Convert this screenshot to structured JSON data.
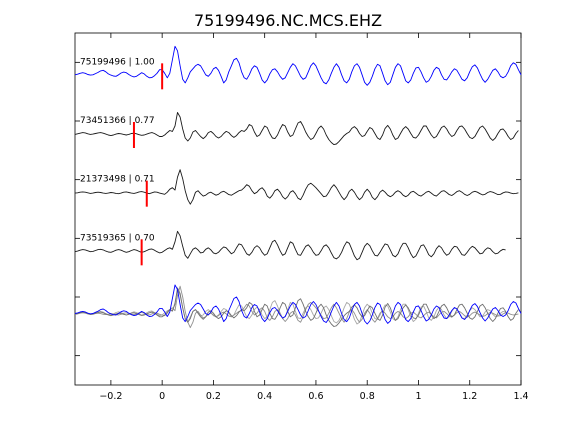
{
  "chart_data": {
    "type": "line",
    "title": "75199496.NC.MCS.EHZ",
    "xlabel": "",
    "ylabel": "",
    "xlim": [
      -0.34,
      1.4
    ],
    "xticks": [
      -0.2,
      0,
      0.2,
      0.4,
      0.6,
      0.8,
      1,
      1.2,
      1.4
    ],
    "xtick_labels": [
      "−0.2",
      "0",
      "0.2",
      "0.4",
      "0.6",
      "0.8",
      "1",
      "1.2",
      "1.4"
    ],
    "yticks_count": 6,
    "grid": false,
    "sample_step": 0.01,
    "series": [
      {
        "name": "75199496 | 1.00",
        "color": "#0000ff",
        "pick_time": 0.0,
        "pick_color": "#ff0000",
        "values": [
          0.05,
          0.07,
          0.1,
          0.12,
          0.1,
          0.06,
          0.04,
          0.05,
          0.09,
          0.13,
          0.18,
          0.2,
          0.15,
          0.08,
          0.04,
          0.01,
          0.0,
          0.05,
          0.11,
          0.14,
          0.12,
          0.06,
          0.01,
          -0.02,
          0.0,
          0.06,
          0.12,
          0.08,
          0.0,
          -0.05,
          -0.04,
          0.02,
          0.1,
          0.22,
          0.22,
          0.1,
          -0.05,
          0.1,
          0.55,
          1.0,
          0.85,
          0.35,
          -0.1,
          -0.22,
          -0.05,
          0.15,
          0.25,
          0.35,
          0.4,
          0.35,
          0.2,
          0.05,
          0.0,
          0.1,
          0.25,
          0.3,
          0.2,
          0.0,
          -0.22,
          -0.12,
          0.15,
          0.35,
          0.55,
          0.6,
          0.45,
          0.15,
          -0.05,
          -0.1,
          0.05,
          0.25,
          0.35,
          0.3,
          0.1,
          -0.12,
          -0.22,
          -0.12,
          0.08,
          0.22,
          0.25,
          0.15,
          0.0,
          -0.1,
          -0.05,
          0.12,
          0.3,
          0.42,
          0.35,
          0.18,
          0.0,
          -0.1,
          -0.05,
          0.15,
          0.35,
          0.45,
          0.35,
          0.15,
          -0.05,
          -0.2,
          -0.25,
          -0.12,
          0.1,
          0.3,
          0.42,
          0.3,
          0.05,
          -0.15,
          -0.22,
          -0.1,
          0.15,
          0.35,
          0.42,
          0.3,
          0.05,
          -0.2,
          -0.3,
          -0.2,
          0.0,
          0.25,
          0.4,
          0.35,
          0.1,
          -0.15,
          -0.28,
          -0.2,
          0.05,
          0.3,
          0.42,
          0.35,
          0.1,
          -0.15,
          -0.22,
          -0.12,
          0.1,
          0.28,
          0.3,
          0.15,
          -0.05,
          -0.2,
          -0.15,
          0.0,
          0.2,
          0.3,
          0.25,
          0.05,
          -0.1,
          -0.12,
          0.0,
          0.15,
          0.25,
          0.2,
          0.05,
          -0.1,
          -0.15,
          -0.05,
          0.15,
          0.32,
          0.38,
          0.28,
          0.08,
          -0.1,
          -0.2,
          -0.1,
          0.05,
          0.2,
          0.25,
          0.15,
          0.0,
          -0.05,
          0.0,
          0.15,
          0.35,
          0.45,
          0.4,
          0.22,
          0.05
        ]
      },
      {
        "name": "73451366 | 0.77",
        "color": "#1a1a1a",
        "pick_time": -0.11,
        "pick_color": "#ff0000",
        "values": [
          0.02,
          0.04,
          0.06,
          0.08,
          0.07,
          0.04,
          0.02,
          0.03,
          0.05,
          0.07,
          0.08,
          0.06,
          0.03,
          0.0,
          -0.02,
          0.0,
          0.03,
          0.05,
          0.04,
          0.02,
          0.0,
          0.02,
          0.05,
          0.06,
          0.04,
          0.01,
          -0.01,
          0.0,
          0.03,
          0.06,
          0.08,
          0.05,
          0.0,
          -0.05,
          -0.05,
          0.0,
          0.08,
          0.15,
          0.12,
          0.3,
          0.75,
          0.6,
          0.2,
          -0.1,
          -0.2,
          -0.1,
          0.1,
          0.15,
          0.05,
          -0.05,
          -0.12,
          -0.05,
          0.08,
          0.12,
          0.05,
          -0.05,
          -0.1,
          -0.05,
          0.05,
          0.12,
          0.08,
          -0.02,
          -0.08,
          -0.02,
          0.08,
          0.15,
          0.12,
          0.2,
          0.35,
          0.3,
          0.1,
          -0.05,
          0.0,
          0.15,
          0.3,
          0.25,
          0.05,
          -0.1,
          -0.12,
          0.0,
          0.2,
          0.35,
          0.3,
          0.1,
          -0.05,
          0.0,
          0.2,
          0.4,
          0.45,
          0.3,
          0.1,
          -0.05,
          -0.15,
          -0.1,
          0.05,
          0.22,
          0.3,
          0.2,
          0.0,
          -0.15,
          -0.25,
          -0.32,
          -0.3,
          -0.22,
          -0.12,
          -0.02,
          0.05,
          0.1,
          0.22,
          0.28,
          0.2,
          0.05,
          -0.05,
          -0.02,
          0.12,
          0.25,
          0.2,
          0.05,
          -0.1,
          -0.15,
          0.0,
          0.22,
          0.32,
          0.2,
          0.0,
          -0.15,
          -0.1,
          0.05,
          0.2,
          0.28,
          0.2,
          0.05,
          -0.08,
          -0.1,
          0.0,
          0.15,
          0.3,
          0.3,
          0.15,
          0.0,
          -0.1,
          -0.05,
          0.1,
          0.25,
          0.3,
          0.2,
          0.05,
          -0.05,
          0.0,
          0.15,
          0.28,
          0.3,
          0.2,
          0.05,
          -0.08,
          -0.12,
          -0.05,
          0.1,
          0.25,
          0.3,
          0.2,
          0.05,
          -0.1,
          -0.18,
          -0.1,
          0.05,
          0.18,
          0.2,
          0.1,
          -0.05,
          -0.15,
          -0.1,
          0.05,
          0.15
        ]
      },
      {
        "name": "21373498 | 0.71",
        "color": "#1a1a1a",
        "pick_time": -0.06,
        "pick_color": "#ff0000",
        "values": [
          0.02,
          0.03,
          0.05,
          0.06,
          0.05,
          0.03,
          0.01,
          0.02,
          0.04,
          0.05,
          0.04,
          0.02,
          0.01,
          0.02,
          0.04,
          0.03,
          0.01,
          0.0,
          0.02,
          0.05,
          0.06,
          0.04,
          0.02,
          0.01,
          0.03,
          0.06,
          0.07,
          0.05,
          0.02,
          0.0,
          0.03,
          0.06,
          0.05,
          0.02,
          0.0,
          -0.02,
          0.05,
          0.15,
          0.2,
          0.12,
          0.55,
          0.8,
          0.5,
          0.1,
          -0.2,
          -0.35,
          -0.2,
          0.05,
          0.1,
          0.0,
          -0.08,
          -0.05,
          0.02,
          0.05,
          0.0,
          -0.05,
          -0.02,
          0.05,
          0.08,
          0.03,
          -0.03,
          -0.05,
          0.0,
          0.05,
          0.1,
          0.12,
          0.2,
          0.3,
          0.25,
          0.1,
          0.0,
          0.05,
          0.15,
          0.2,
          0.1,
          -0.08,
          -0.15,
          -0.05,
          0.1,
          0.15,
          0.05,
          -0.1,
          -0.18,
          -0.1,
          0.05,
          0.1,
          0.0,
          -0.15,
          -0.2,
          -0.05,
          0.15,
          0.3,
          0.35,
          0.28,
          0.2,
          0.1,
          0.0,
          -0.1,
          -0.08,
          0.05,
          0.2,
          0.3,
          0.2,
          0.05,
          -0.1,
          -0.2,
          -0.1,
          0.08,
          0.15,
          0.05,
          -0.1,
          -0.2,
          -0.12,
          0.05,
          0.15,
          0.05,
          -0.12,
          -0.2,
          -0.1,
          0.05,
          0.12,
          0.05,
          -0.05,
          -0.1,
          -0.05,
          0.05,
          0.1,
          0.05,
          -0.05,
          -0.1,
          -0.05,
          0.05,
          0.08,
          0.02,
          -0.05,
          -0.08,
          -0.02,
          0.05,
          0.08,
          0.02,
          -0.05,
          -0.08,
          0.0,
          0.08,
          0.1,
          0.04,
          -0.03,
          -0.06,
          0.0,
          0.07,
          0.1,
          0.05,
          -0.02,
          -0.06,
          -0.02,
          0.05,
          0.08,
          0.05,
          0.0,
          -0.04,
          -0.02,
          0.04,
          0.07,
          0.05,
          0.01,
          -0.03,
          -0.02,
          0.03,
          0.06,
          0.05,
          0.02,
          0.0,
          0.01,
          0.03
        ]
      },
      {
        "name": "73519365 | 0.70",
        "color": "#1a1a1a",
        "pick_time": -0.08,
        "pick_color": "#ff0000",
        "values": [
          0.02,
          0.04,
          0.07,
          0.09,
          0.08,
          0.05,
          0.02,
          0.03,
          0.06,
          0.09,
          0.1,
          0.08,
          0.04,
          0.01,
          0.0,
          0.03,
          0.07,
          0.09,
          0.07,
          0.03,
          0.0,
          0.02,
          0.06,
          0.09,
          0.07,
          0.03,
          0.0,
          0.02,
          0.06,
          0.1,
          0.11,
          0.07,
          0.02,
          -0.02,
          0.0,
          0.06,
          0.12,
          0.15,
          0.1,
          0.35,
          0.7,
          0.55,
          0.2,
          -0.1,
          -0.2,
          -0.05,
          0.1,
          0.15,
          0.08,
          -0.02,
          0.0,
          0.1,
          0.15,
          0.08,
          -0.02,
          -0.05,
          0.0,
          0.1,
          0.18,
          0.15,
          0.05,
          -0.05,
          0.0,
          0.15,
          0.28,
          0.25,
          0.1,
          -0.05,
          -0.1,
          0.0,
          0.15,
          0.22,
          0.15,
          0.0,
          -0.1,
          -0.05,
          0.15,
          0.35,
          0.4,
          0.25,
          0.05,
          -0.1,
          -0.05,
          0.15,
          0.35,
          0.3,
          0.1,
          -0.08,
          -0.1,
          0.05,
          0.2,
          0.25,
          0.15,
          0.0,
          -0.1,
          -0.08,
          0.05,
          0.2,
          0.25,
          0.15,
          -0.02,
          -0.18,
          -0.22,
          -0.15,
          0.0,
          0.2,
          0.35,
          0.3,
          0.1,
          -0.12,
          -0.25,
          -0.2,
          0.0,
          0.2,
          0.3,
          0.22,
          0.05,
          -0.1,
          -0.12,
          0.0,
          0.15,
          0.28,
          0.25,
          0.08,
          -0.1,
          -0.15,
          -0.05,
          0.15,
          0.3,
          0.3,
          0.15,
          -0.05,
          -0.18,
          -0.12,
          0.05,
          0.22,
          0.25,
          0.1,
          -0.08,
          -0.15,
          -0.05,
          0.12,
          0.22,
          0.15,
          0.0,
          -0.1,
          -0.05,
          0.1,
          0.2,
          0.18,
          0.05,
          -0.08,
          -0.1,
          0.0,
          0.12,
          0.2,
          0.15,
          0.05,
          -0.05,
          -0.03,
          0.08,
          0.15,
          0.12,
          0.02,
          -0.05,
          -0.03,
          0.05,
          0.1,
          0.08
        ]
      }
    ],
    "overlay": {
      "series_names": [
        "75199496 | 1.00",
        "73451366 | 0.77",
        "21373498 | 0.71",
        "73519365 | 0.70"
      ],
      "colors": [
        "#0000ff",
        "#707070",
        "#909090",
        "#a8a8a8"
      ]
    }
  }
}
